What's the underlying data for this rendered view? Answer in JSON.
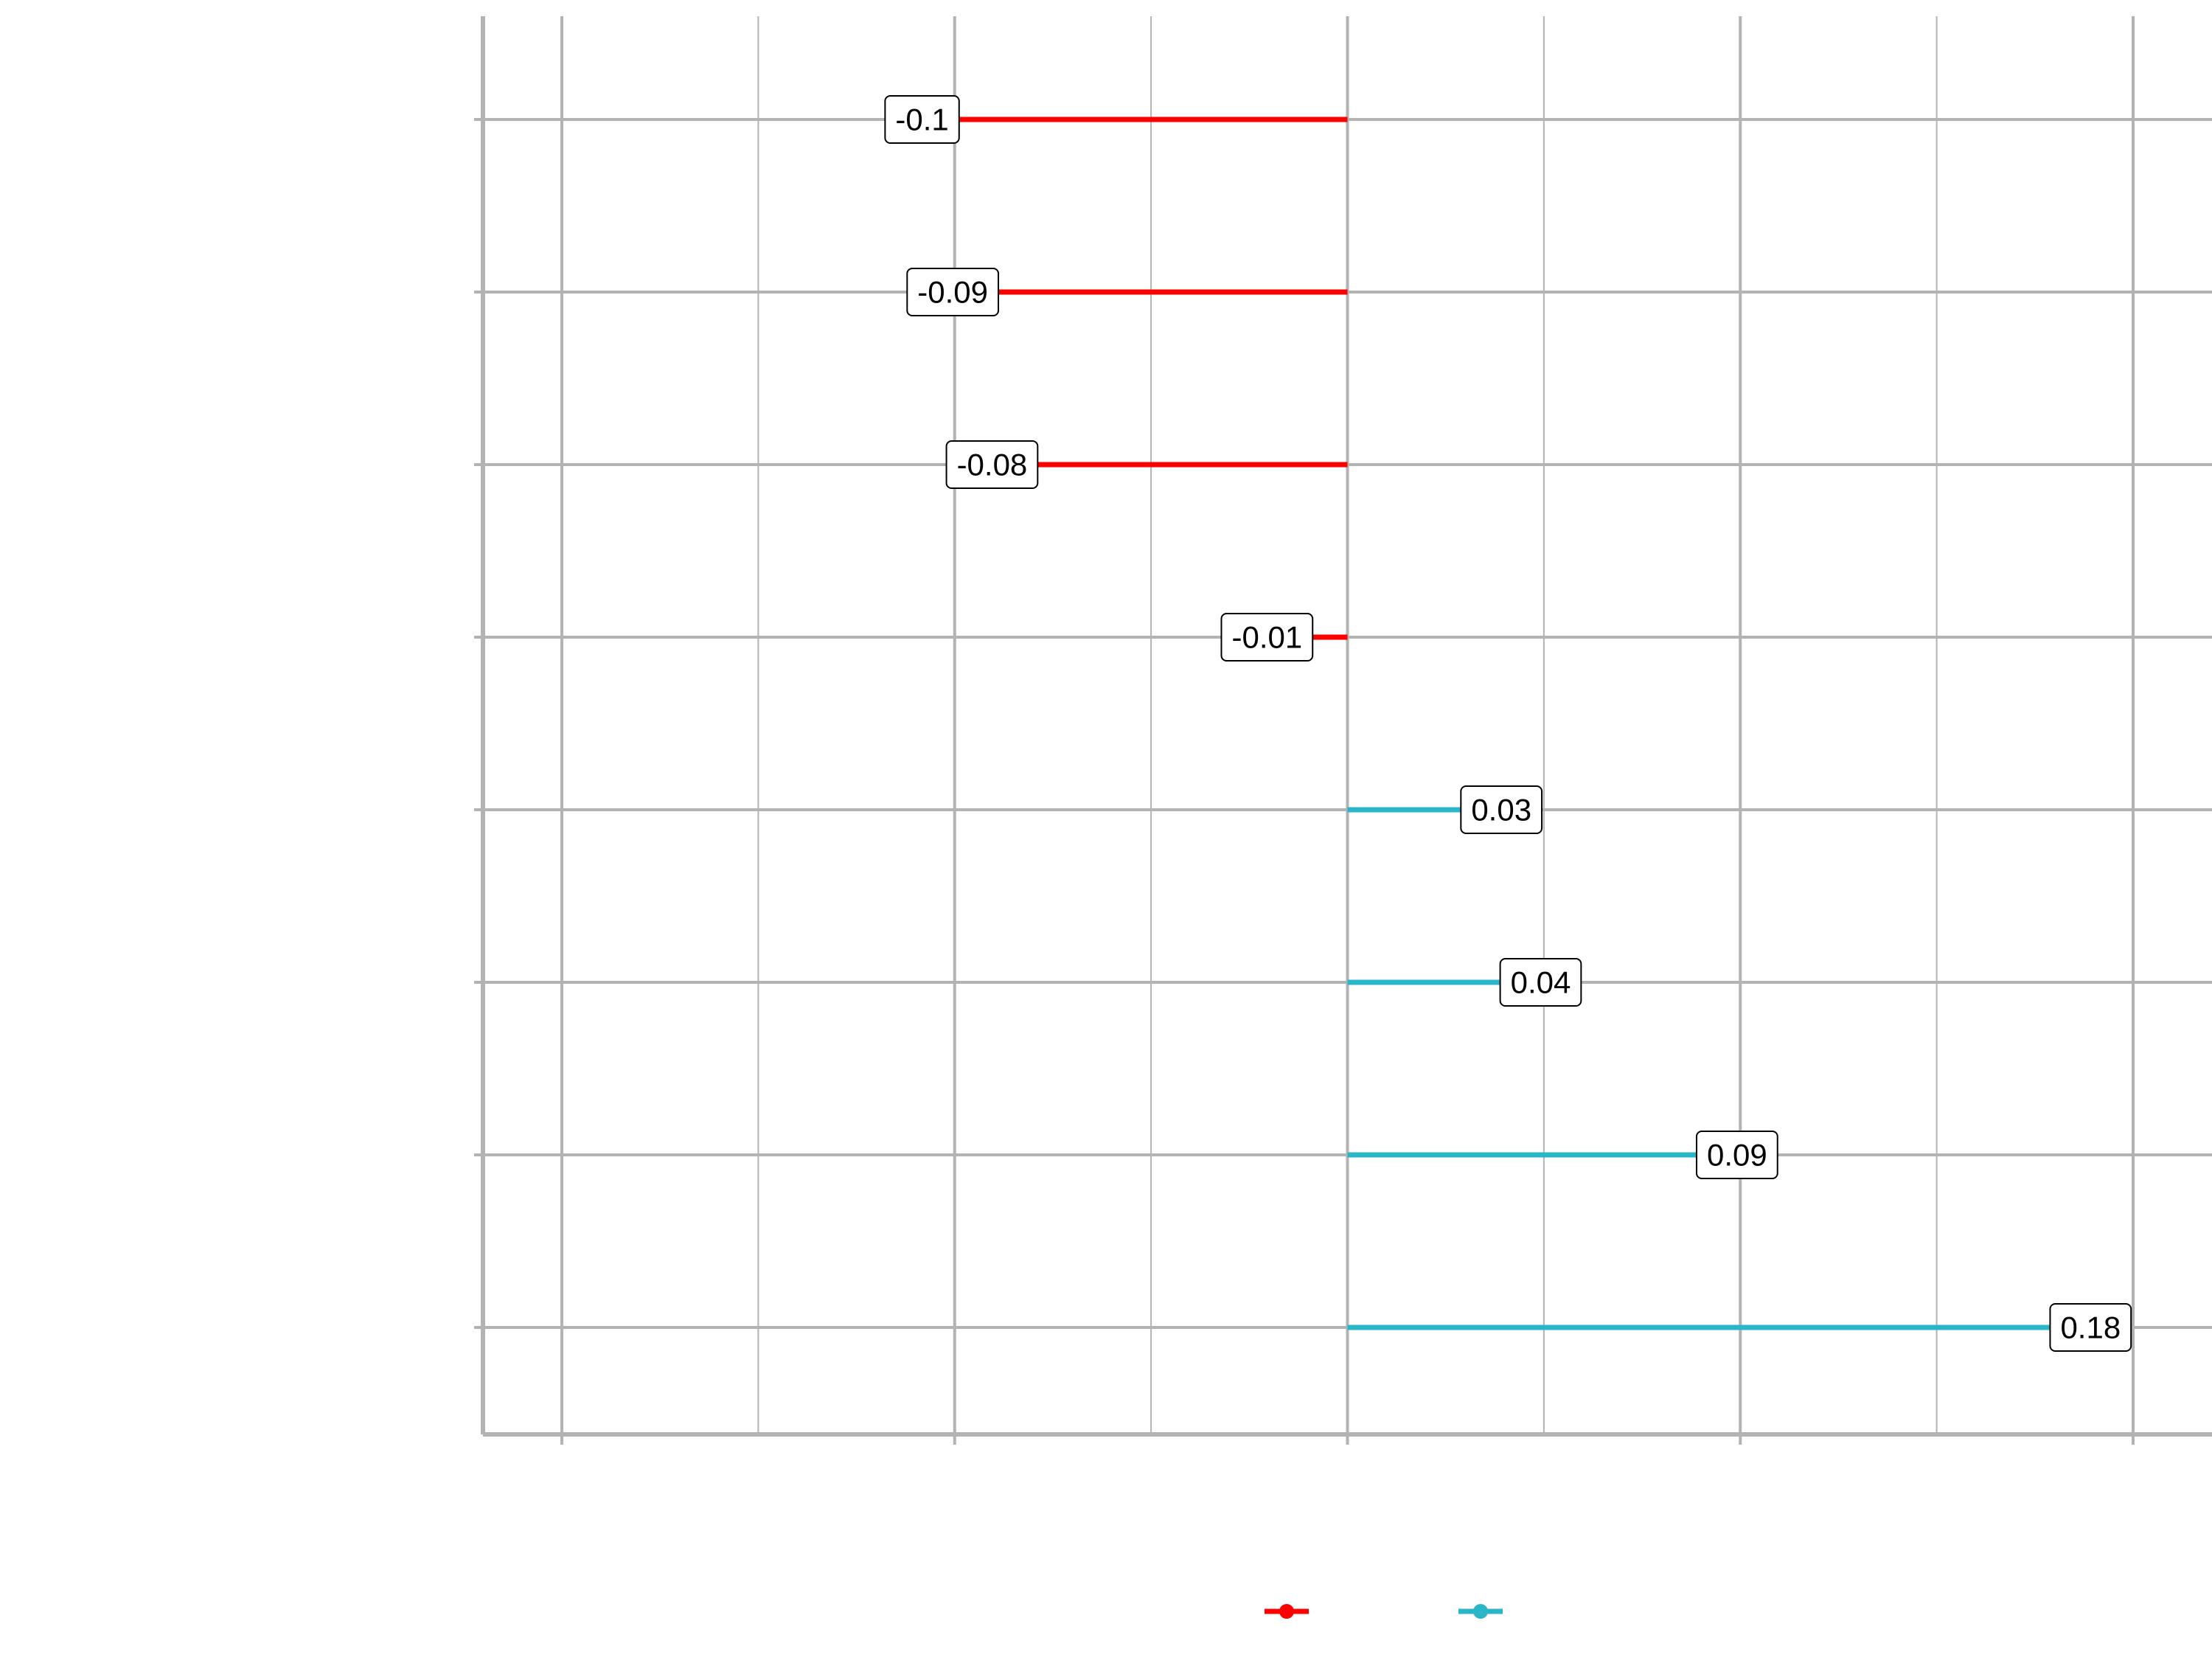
{
  "chart_data": {
    "type": "lollipop",
    "orientation": "horizontal",
    "title": "",
    "xlabel": "",
    "ylabel": "",
    "xlim": [
      -0.2,
      0.2
    ],
    "x_major_ticks": [
      -0.2,
      -0.1,
      0.0,
      0.1,
      0.2
    ],
    "x_minor_ticks": [
      -0.15,
      -0.05,
      0.05,
      0.15
    ],
    "baseline": 0,
    "grid": true,
    "legend_position": "bottom",
    "colors": {
      "negative": "#ff0000",
      "positive": "#29b6c8",
      "grid": "#b3b3b3",
      "label_border": "#000000"
    },
    "legend": [
      {
        "key": "negative",
        "label": ""
      },
      {
        "key": "positive",
        "label": ""
      }
    ],
    "points": [
      {
        "value": -0.1,
        "label": "-0.1",
        "group": "negative"
      },
      {
        "value": -0.09,
        "label": "-0.09",
        "group": "negative"
      },
      {
        "value": -0.08,
        "label": "-0.08",
        "group": "negative"
      },
      {
        "value": -0.01,
        "label": "-0.01",
        "group": "negative"
      },
      {
        "value": 0.03,
        "label": "0.03",
        "group": "positive"
      },
      {
        "value": 0.04,
        "label": "0.04",
        "group": "positive"
      },
      {
        "value": 0.09,
        "label": "0.09",
        "group": "positive"
      },
      {
        "value": 0.18,
        "label": "0.18",
        "group": "positive"
      }
    ]
  }
}
